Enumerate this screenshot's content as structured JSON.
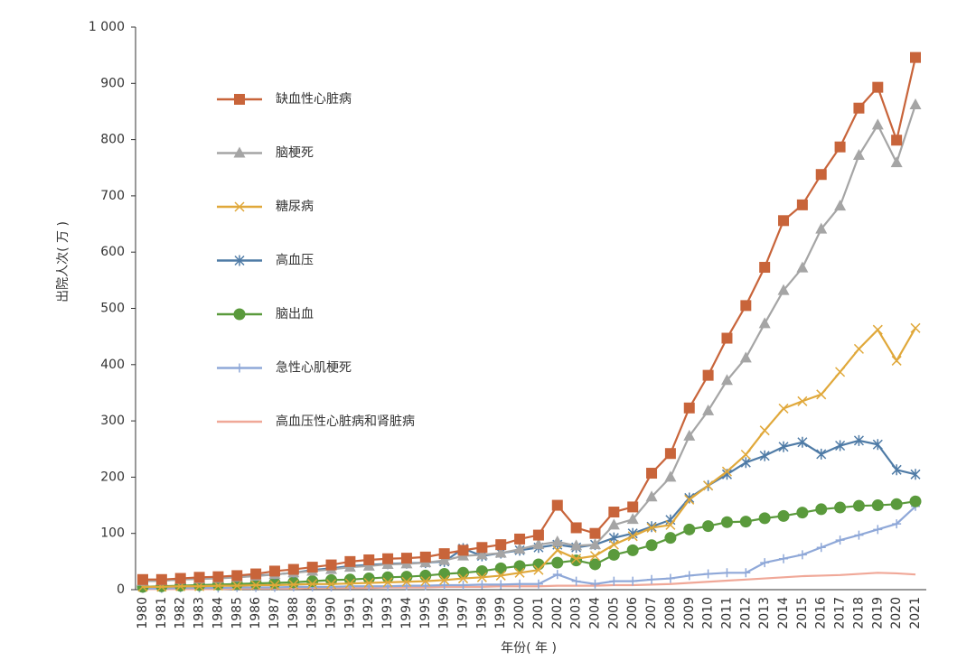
{
  "chart_data": {
    "type": "line",
    "y_label": "出院人次( 万 )",
    "x_label": "年份( 年 )",
    "categories": [
      "1980",
      "1981",
      "1982",
      "1983",
      "1984",
      "1985",
      "1986",
      "1987",
      "1988",
      "1989",
      "1990",
      "1991",
      "1992",
      "1993",
      "1994",
      "1995",
      "1996",
      "1997",
      "1998",
      "1999",
      "2000",
      "2001",
      "2002",
      "2003",
      "2004",
      "2005",
      "2006",
      "2007",
      "2008",
      "2009",
      "2010",
      "2011",
      "2012",
      "2013",
      "2014",
      "2015",
      "2016",
      "2017",
      "2018",
      "2019",
      "2020",
      "2021"
    ],
    "ylim": [
      0,
      1000
    ],
    "yticks": [
      0,
      100,
      200,
      300,
      400,
      500,
      600,
      700,
      800,
      900,
      {
        "value": 1000,
        "label": "1 000"
      }
    ],
    "grid": false,
    "legend": "upper-left",
    "series": [
      {
        "name": "缺血性心脏病",
        "color": "#c8643a",
        "marker": "square",
        "values": [
          18,
          18,
          20,
          22,
          23,
          25,
          28,
          33,
          36,
          40,
          44,
          50,
          53,
          55,
          56,
          58,
          64,
          70,
          75,
          80,
          90,
          97,
          150,
          110,
          100,
          138,
          147,
          207,
          242,
          323,
          381,
          447,
          505,
          573,
          656,
          684,
          738,
          787,
          856,
          893,
          799,
          946
        ]
      },
      {
        "name": "脑梗死",
        "color": "#a5a5a5",
        "marker": "triangle",
        "values": [
          15,
          16,
          18,
          19,
          20,
          22,
          24,
          27,
          30,
          33,
          36,
          40,
          42,
          45,
          46,
          48,
          52,
          60,
          62,
          65,
          72,
          80,
          85,
          78,
          80,
          115,
          125,
          165,
          200,
          273,
          318,
          372,
          412,
          473,
          532,
          572,
          641,
          682,
          772,
          826,
          759,
          862
        ]
      },
      {
        "name": "糖尿病",
        "color": "#e0a83a",
        "marker": "x",
        "values": [
          5,
          5,
          6,
          6,
          7,
          7,
          8,
          8,
          9,
          10,
          10,
          11,
          12,
          13,
          14,
          15,
          17,
          20,
          22,
          25,
          30,
          35,
          70,
          55,
          60,
          80,
          95,
          110,
          115,
          160,
          185,
          210,
          240,
          283,
          322,
          335,
          347,
          387,
          428,
          462,
          407,
          465
        ]
      },
      {
        "name": "高血压",
        "color": "#4f7ba6",
        "marker": "asterisk",
        "values": [
          15,
          16,
          18,
          20,
          21,
          22,
          25,
          27,
          30,
          35,
          38,
          42,
          44,
          46,
          47,
          48,
          50,
          73,
          60,
          65,
          70,
          75,
          80,
          75,
          80,
          92,
          100,
          112,
          124,
          163,
          185,
          205,
          226,
          238,
          254,
          262,
          241,
          256,
          265,
          258,
          213,
          205
        ]
      },
      {
        "name": "脑出血",
        "color": "#5a9a3c",
        "marker": "circle",
        "values": [
          5,
          6,
          7,
          8,
          9,
          10,
          11,
          12,
          13,
          15,
          17,
          18,
          20,
          22,
          23,
          25,
          28,
          30,
          33,
          38,
          42,
          45,
          48,
          52,
          45,
          62,
          70,
          79,
          92,
          107,
          113,
          120,
          121,
          127,
          131,
          137,
          143,
          146,
          149,
          150,
          152,
          157
        ]
      },
      {
        "name": "急性心肌梗死",
        "color": "#8fa8d8",
        "marker": "plus",
        "values": [
          2,
          2,
          3,
          3,
          3,
          4,
          4,
          4,
          5,
          5,
          5,
          6,
          6,
          6,
          7,
          7,
          8,
          8,
          9,
          9,
          10,
          10,
          27,
          15,
          10,
          15,
          15,
          18,
          20,
          25,
          28,
          30,
          30,
          48,
          55,
          62,
          75,
          88,
          97,
          107,
          117,
          148
        ]
      },
      {
        "name": "高血压性心脏病和肾脏病",
        "color": "#f0a898",
        "marker": "none",
        "values": [
          1,
          1,
          1,
          1,
          1,
          2,
          2,
          2,
          2,
          3,
          3,
          3,
          3,
          4,
          4,
          4,
          5,
          5,
          5,
          6,
          6,
          6,
          7,
          7,
          7,
          8,
          8,
          9,
          10,
          12,
          14,
          16,
          18,
          20,
          22,
          24,
          25,
          26,
          28,
          30,
          29,
          27
        ]
      }
    ]
  }
}
